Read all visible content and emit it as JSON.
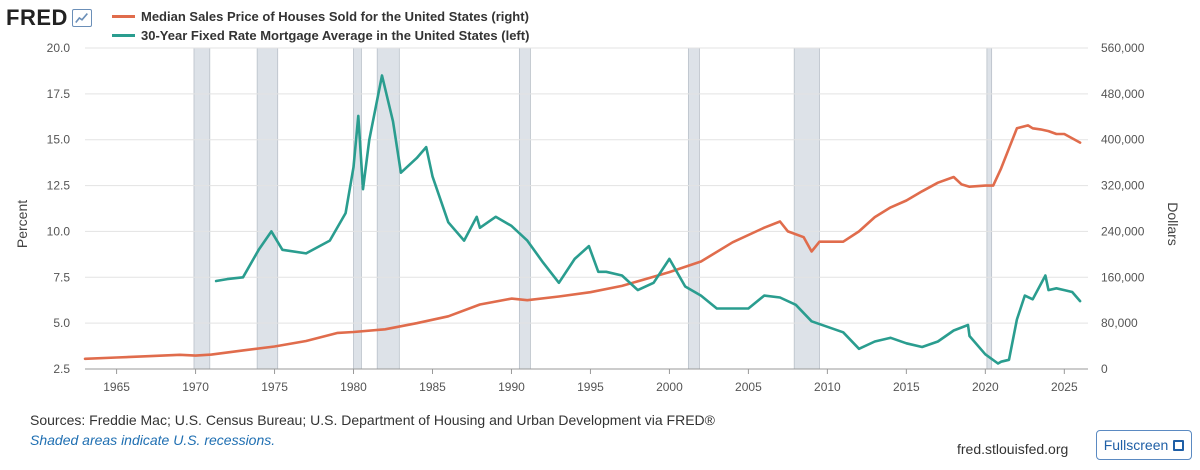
{
  "header": {
    "logo_text": "FRED",
    "logo_icon": "chart-line-icon"
  },
  "footer": {
    "sources": "Sources: Freddie Mac; U.S. Census Bureau; U.S. Department of Housing and Urban Development via FRED®",
    "note": "Shaded areas indicate U.S. recessions.",
    "site": "fred.stlouisfed.org",
    "fullscreen_label": "Fullscreen"
  },
  "chart_data": {
    "type": "line",
    "title": "",
    "x_range": [
      1963,
      2026.5
    ],
    "x_ticks": [
      "1965",
      "1970",
      "1975",
      "1980",
      "1985",
      "1990",
      "1995",
      "2000",
      "2005",
      "2010",
      "2015",
      "2020",
      "2025"
    ],
    "y_left": {
      "label": "Percent",
      "range": [
        2.5,
        20.0
      ],
      "ticks": [
        "2.5",
        "5.0",
        "7.5",
        "10.0",
        "12.5",
        "15.0",
        "17.5",
        "20.0"
      ]
    },
    "y_right": {
      "label": "Dollars",
      "range": [
        0,
        560000
      ],
      "ticks": [
        "0",
        "80,000",
        "160,000",
        "240,000",
        "320,000",
        "400,000",
        "480,000",
        "560,000"
      ]
    },
    "grid": "horizontal",
    "legend_placement": "top-left",
    "recessions": [
      [
        1969.9,
        1970.9
      ],
      [
        1973.9,
        1975.2
      ],
      [
        1980.0,
        1980.5
      ],
      [
        1981.5,
        1982.9
      ],
      [
        1990.5,
        1991.2
      ],
      [
        2001.2,
        2001.9
      ],
      [
        2007.9,
        2009.5
      ],
      [
        2020.1,
        2020.4
      ]
    ],
    "series": [
      {
        "name": "Median Sales Price of Houses Sold for the United States (right)",
        "axis": "right",
        "color": "#e06c4c",
        "points": [
          [
            1963,
            17800
          ],
          [
            1965,
            20000
          ],
          [
            1967,
            22300
          ],
          [
            1969,
            24700
          ],
          [
            1970,
            23400
          ],
          [
            1971,
            25200
          ],
          [
            1973,
            32500
          ],
          [
            1975,
            39300
          ],
          [
            1977,
            48800
          ],
          [
            1979,
            62900
          ],
          [
            1980,
            64600
          ],
          [
            1982,
            69300
          ],
          [
            1984,
            79900
          ],
          [
            1986,
            92000
          ],
          [
            1988,
            112500
          ],
          [
            1990,
            122900
          ],
          [
            1991,
            120000
          ],
          [
            1993,
            126500
          ],
          [
            1995,
            133900
          ],
          [
            1997,
            145000
          ],
          [
            1999,
            161000
          ],
          [
            2000,
            169000
          ],
          [
            2002,
            187600
          ],
          [
            2004,
            221000
          ],
          [
            2006,
            246500
          ],
          [
            2007,
            257400
          ],
          [
            2007.5,
            240000
          ],
          [
            2008.5,
            230000
          ],
          [
            2009,
            205000
          ],
          [
            2009.5,
            222000
          ],
          [
            2011,
            222000
          ],
          [
            2012,
            240000
          ],
          [
            2013,
            265000
          ],
          [
            2014,
            282000
          ],
          [
            2015,
            294000
          ],
          [
            2016,
            310000
          ],
          [
            2017,
            325000
          ],
          [
            2018,
            335000
          ],
          [
            2018.5,
            322000
          ],
          [
            2019,
            318000
          ],
          [
            2020,
            320000
          ],
          [
            2020.5,
            320000
          ],
          [
            2021,
            350000
          ],
          [
            2021.5,
            385000
          ],
          [
            2022,
            420000
          ],
          [
            2022.7,
            425000
          ],
          [
            2023,
            420000
          ],
          [
            2023.5,
            418000
          ],
          [
            2024,
            415000
          ],
          [
            2024.5,
            410000
          ],
          [
            2025,
            410000
          ],
          [
            2026,
            395000
          ]
        ]
      },
      {
        "name": "30-Year Fixed Rate Mortgage Average in the United States (left)",
        "axis": "left",
        "color": "#2a9d8f",
        "points": [
          [
            1971.3,
            7.3
          ],
          [
            1972,
            7.4
          ],
          [
            1973,
            7.5
          ],
          [
            1974,
            9.0
          ],
          [
            1974.8,
            10.0
          ],
          [
            1975.5,
            9.0
          ],
          [
            1977,
            8.8
          ],
          [
            1978.5,
            9.5
          ],
          [
            1979.5,
            11.0
          ],
          [
            1980,
            13.5
          ],
          [
            1980.3,
            16.3
          ],
          [
            1980.6,
            12.3
          ],
          [
            1981,
            15.0
          ],
          [
            1981.8,
            18.5
          ],
          [
            1982.5,
            16.0
          ],
          [
            1983,
            13.2
          ],
          [
            1984,
            14.0
          ],
          [
            1984.6,
            14.6
          ],
          [
            1985,
            13.0
          ],
          [
            1986,
            10.5
          ],
          [
            1987,
            9.5
          ],
          [
            1987.8,
            10.8
          ],
          [
            1988,
            10.2
          ],
          [
            1989,
            10.8
          ],
          [
            1990,
            10.3
          ],
          [
            1991,
            9.5
          ],
          [
            1992,
            8.3
          ],
          [
            1993,
            7.2
          ],
          [
            1994,
            8.5
          ],
          [
            1994.9,
            9.2
          ],
          [
            1995.5,
            7.8
          ],
          [
            1996,
            7.8
          ],
          [
            1997,
            7.6
          ],
          [
            1998,
            6.8
          ],
          [
            1999,
            7.2
          ],
          [
            2000,
            8.5
          ],
          [
            2001,
            7.0
          ],
          [
            2002,
            6.5
          ],
          [
            2003,
            5.8
          ],
          [
            2004,
            5.8
          ],
          [
            2005,
            5.8
          ],
          [
            2006,
            6.5
          ],
          [
            2007,
            6.4
          ],
          [
            2008,
            6.0
          ],
          [
            2009,
            5.1
          ],
          [
            2010,
            4.8
          ],
          [
            2011,
            4.5
          ],
          [
            2012,
            3.6
          ],
          [
            2013,
            4.0
          ],
          [
            2014,
            4.2
          ],
          [
            2015,
            3.9
          ],
          [
            2016,
            3.7
          ],
          [
            2017,
            4.0
          ],
          [
            2018,
            4.6
          ],
          [
            2018.9,
            4.9
          ],
          [
            2019,
            4.3
          ],
          [
            2020,
            3.3
          ],
          [
            2020.8,
            2.8
          ],
          [
            2021,
            2.9
          ],
          [
            2021.5,
            3.0
          ],
          [
            2022,
            5.2
          ],
          [
            2022.5,
            6.5
          ],
          [
            2023,
            6.3
          ],
          [
            2023.8,
            7.6
          ],
          [
            2024,
            6.8
          ],
          [
            2024.5,
            6.9
          ],
          [
            2025,
            6.8
          ],
          [
            2025.5,
            6.7
          ],
          [
            2026,
            6.2
          ]
        ]
      }
    ]
  }
}
